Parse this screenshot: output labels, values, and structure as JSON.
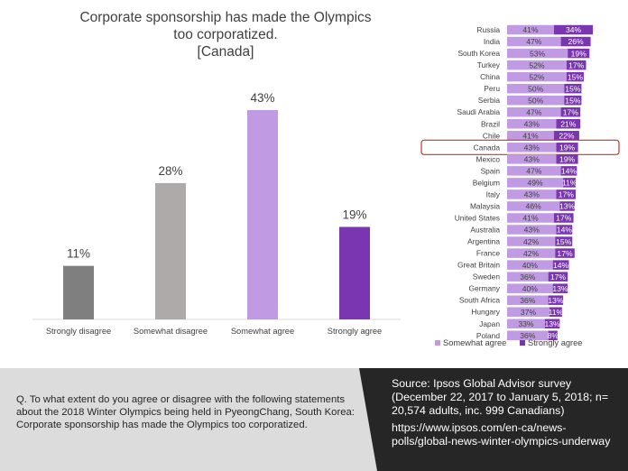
{
  "title_lines": [
    "Corporate sponsorship has made the Olympics",
    "too corporatized.",
    "[Canada]"
  ],
  "chart_data": [
    {
      "type": "bar",
      "categories": [
        "Strongly disagree",
        "Somewhat disagree",
        "Somewhat agree",
        "Strongly agree"
      ],
      "values": [
        11,
        28,
        43,
        19
      ],
      "value_labels": [
        "11%",
        "28%",
        "43%",
        "19%"
      ],
      "colors": [
        "#7f7f7f",
        "#aeaaaa",
        "#c09ae2",
        "#7a35b0"
      ],
      "ylim": [
        0,
        48
      ],
      "grid": false
    },
    {
      "type": "bar",
      "orientation": "horizontal",
      "stacked": true,
      "categories": [
        "Russia",
        "India",
        "South Korea",
        "Turkey",
        "China",
        "Peru",
        "Serbia",
        "Saudi Arabia",
        "Brazil",
        "Chile",
        "Canada",
        "Mexico",
        "Spain",
        "Belgium",
        "Italy",
        "Malaysia",
        "United States",
        "Australia",
        "Argentina",
        "France",
        "Great Britain",
        "Sweden",
        "Germany",
        "South Africa",
        "Hungary",
        "Japan",
        "Poland"
      ],
      "series": [
        {
          "name": "Somewhat agree",
          "color": "#c09ae2",
          "values": [
            41,
            47,
            53,
            52,
            52,
            50,
            50,
            47,
            43,
            41,
            43,
            43,
            47,
            49,
            43,
            46,
            41,
            43,
            42,
            42,
            40,
            36,
            40,
            36,
            37,
            33,
            36
          ],
          "labels": [
            "41%",
            "47%",
            "53%",
            "52%",
            "52%",
            "50%",
            "50%",
            "47%",
            "43%",
            "41%",
            "43%",
            "43%",
            "47%",
            "49%",
            "43%",
            "46%",
            "41%",
            "43%",
            "42%",
            "42%",
            "40%",
            "36%",
            "40%",
            "36%",
            "37%",
            "33%",
            "36%"
          ]
        },
        {
          "name": "Strongly agree",
          "color": "#7a35b0",
          "values": [
            34,
            26,
            19,
            17,
            15,
            15,
            15,
            17,
            21,
            22,
            19,
            19,
            14,
            11,
            17,
            13,
            17,
            14,
            15,
            17,
            14,
            17,
            13,
            13,
            11,
            13,
            8
          ],
          "labels": [
            "34%",
            "26%",
            "19%",
            "17%",
            "15%",
            "15%",
            "15%",
            "17%",
            "21%",
            "22%",
            "19%",
            "19%",
            "14%",
            "11%",
            "17%",
            "13%",
            "17%",
            "14%",
            "15%",
            "17%",
            "14%",
            "17%",
            "13%",
            "13%",
            "11%",
            "13%",
            "8%"
          ]
        }
      ],
      "highlight": "Canada",
      "legend": "bottom"
    }
  ],
  "question": "Q.  To what extent do you agree or disagree with the following statements about the 2018 Winter Olympics being held in PyeongChang, South Korea: Corporate sponsorship has made the Olympics too corporatized.",
  "source_text": "Source: Ipsos Global Advisor survey (December 22, 2017 to January 5, 2018; n= 20,574 adults, inc. 999 Canadians)",
  "source_url": "https://www.ipsos.com/en-ca/news-polls/global-news-winter-olympics-underway",
  "colors": {
    "highlight_box": "#c0392b",
    "footer_dark": "#262626",
    "footer_light": "#dcdcdc"
  }
}
